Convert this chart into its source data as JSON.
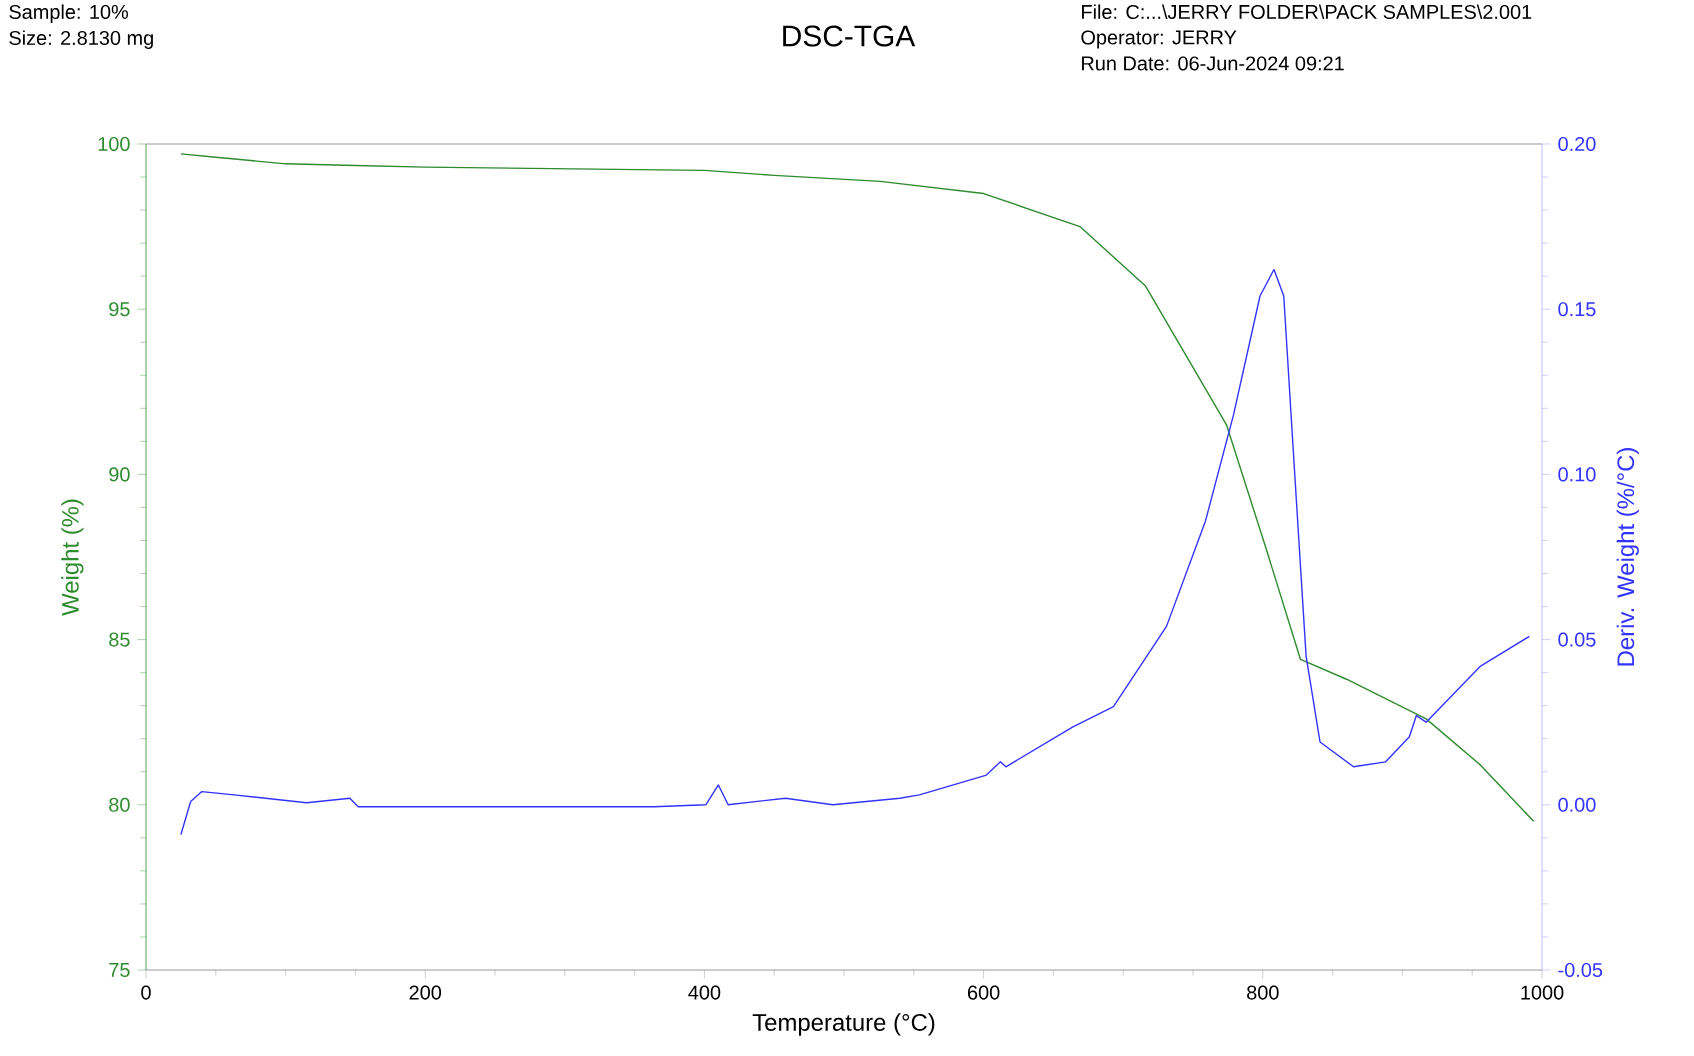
{
  "chart_data": {
    "type": "line",
    "title": "DSC-TGA",
    "annotations": [
      "Sample: 10%",
      "Size:  2.8130 mg",
      "File: C:...\\JERRY FOLDER\\PACK SAMPLES\\2.001",
      "Operator: JERRY",
      "Run Date: 06-Jun-2024 09:21"
    ],
    "xlabel": "Temperature (°C)",
    "ylabel": "Weight (%)",
    "y2label": "Deriv. Weight (%/°C)",
    "xlim": [
      0,
      1000
    ],
    "xticks": [
      0,
      200,
      400,
      600,
      800,
      1000
    ],
    "ylim": [
      75,
      100
    ],
    "yticks": [
      75,
      80,
      85,
      90,
      95,
      100
    ],
    "y2lim": [
      -0.05,
      0.2
    ],
    "y2ticks": [
      {
        "value": -0.05,
        "label": "-0.05"
      },
      {
        "value": 0,
        "label": "0.00"
      },
      {
        "value": 0.05,
        "label": "0.05"
      },
      {
        "value": 0.1,
        "label": "0.10"
      },
      {
        "value": 0.15,
        "label": "0.15"
      },
      {
        "value": 0.2,
        "label": "0.20"
      }
    ],
    "grid": false,
    "marker": "none",
    "line_style": "solid",
    "series": [
      {
        "color": "#2e8b2e",
        "x": [
          25,
          50,
          100,
          150,
          200,
          300,
          400,
          450,
          526,
          600,
          669,
          716,
          774,
          802,
          827,
          860,
          917,
          956,
          994
        ],
        "values": [
          99.7,
          99.6,
          99.4,
          99.35,
          99.3,
          99.25,
          99.2,
          99.05,
          98.87,
          98.5,
          97.5,
          95.7,
          91.5,
          87.8,
          84.4,
          83.8,
          82.6,
          81.2,
          79.5
        ]
      },
      {
        "color": "#3333ff",
        "axis": "y2",
        "x": [
          25,
          32,
          40,
          63,
          115,
          146,
          152,
          186,
          268,
          364,
          401,
          410,
          417,
          458,
          492,
          540,
          554,
          602,
          612,
          616,
          664,
          693,
          731,
          759,
          779,
          798,
          808,
          815,
          822,
          831,
          841,
          865,
          888,
          905,
          910,
          917,
          956,
          991
        ],
        "values": [
          -0.009,
          0.001,
          0.004,
          0.003,
          0.0006,
          0.002,
          -0.0006,
          -0.0006,
          -0.0006,
          -0.0006,
          0,
          0.006,
          0,
          0.002,
          0,
          0.002,
          0.003,
          0.009,
          0.013,
          0.0115,
          0.0236,
          0.0297,
          0.054,
          0.086,
          0.118,
          0.154,
          0.162,
          0.154,
          0.106,
          0.045,
          0.019,
          0.0115,
          0.013,
          0.0206,
          0.027,
          0.025,
          0.042,
          0.051
        ]
      }
    ]
  }
}
